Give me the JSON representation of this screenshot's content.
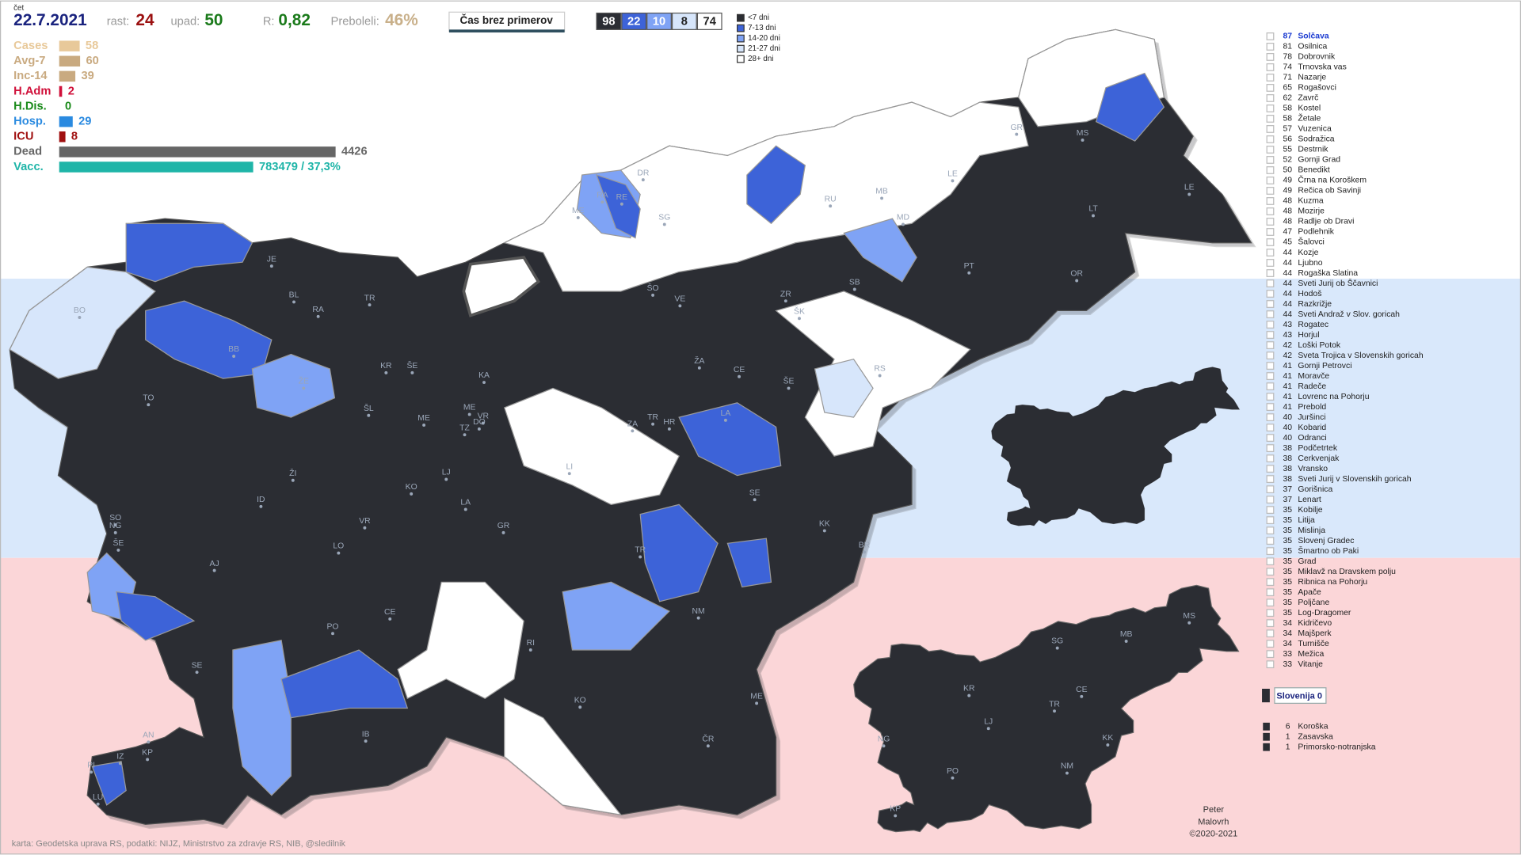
{
  "header": {
    "day": "čet",
    "date": "22.7.2021",
    "growth_label": "rast:",
    "growth": 24,
    "decline_label": "upad:",
    "decline": 50,
    "r_label": "R:",
    "r": "0,82",
    "recovered_label": "Preboleli:",
    "recovered": "46%",
    "button": "Čas brez primerov"
  },
  "counts": [
    {
      "value": 98,
      "color": "#2b2d33"
    },
    {
      "value": 22,
      "color": "#3d63d8"
    },
    {
      "value": 10,
      "color": "#7fa3f5"
    },
    {
      "value": 8,
      "color": "#d7e6fb"
    },
    {
      "value": 74,
      "color": "#ffffff"
    }
  ],
  "legend": [
    {
      "label": "<7 dni",
      "color": "#2b2d33"
    },
    {
      "label": "7-13 dni",
      "color": "#3d63d8"
    },
    {
      "label": "14-20 dni",
      "color": "#7fa3f5"
    },
    {
      "label": "21-27 dni",
      "color": "#d7e6fb"
    },
    {
      "label": "28+ dni",
      "color": "#ffffff"
    }
  ],
  "stats": [
    {
      "label": "Cases",
      "value": 58,
      "color": "#e8c99a"
    },
    {
      "label": "Avg-7",
      "value": 60,
      "color": "#c9aa80"
    },
    {
      "label": "Inc-14",
      "value": 39,
      "color": "#c9aa80"
    },
    {
      "label": "H.Adm",
      "value": 2,
      "color": "#d0103a"
    },
    {
      "label": "H.Dis.",
      "value": 0,
      "color": "#1a8a1a"
    },
    {
      "label": "Hosp.",
      "value": 29,
      "color": "#2a8ae0"
    },
    {
      "label": "ICU",
      "value": 8,
      "color": "#a01010"
    },
    {
      "label": "Dead",
      "value": 4426,
      "color": "#666666"
    },
    {
      "label": "Vacc.",
      "value": "783479 / 37,3%",
      "color": "#1fb5a8"
    }
  ],
  "ranking": [
    {
      "value": 87,
      "name": "Solčava"
    },
    {
      "value": 81,
      "name": "Osilnica"
    },
    {
      "value": 78,
      "name": "Dobrovnik"
    },
    {
      "value": 74,
      "name": "Trnovska vas"
    },
    {
      "value": 71,
      "name": "Nazarje"
    },
    {
      "value": 65,
      "name": "Rogašovci"
    },
    {
      "value": 62,
      "name": "Zavrč"
    },
    {
      "value": 58,
      "name": "Kostel"
    },
    {
      "value": 58,
      "name": "Žetale"
    },
    {
      "value": 57,
      "name": "Vuzenica"
    },
    {
      "value": 56,
      "name": "Sodražica"
    },
    {
      "value": 55,
      "name": "Destrnik"
    },
    {
      "value": 52,
      "name": "Gornji Grad"
    },
    {
      "value": 50,
      "name": "Benedikt"
    },
    {
      "value": 49,
      "name": "Črna na Koroškem"
    },
    {
      "value": 49,
      "name": "Rečica ob Savinji"
    },
    {
      "value": 48,
      "name": "Kuzma"
    },
    {
      "value": 48,
      "name": "Mozirje"
    },
    {
      "value": 48,
      "name": "Radlje ob Dravi"
    },
    {
      "value": 47,
      "name": "Podlehnik"
    },
    {
      "value": 45,
      "name": "Šalovci"
    },
    {
      "value": 44,
      "name": "Kozje"
    },
    {
      "value": 44,
      "name": "Ljubno"
    },
    {
      "value": 44,
      "name": "Rogaška Slatina"
    },
    {
      "value": 44,
      "name": "Sveti Jurij ob Ščavnici"
    },
    {
      "value": 44,
      "name": "Hodoš"
    },
    {
      "value": 44,
      "name": "Razkrižje"
    },
    {
      "value": 44,
      "name": "Sveti Andraž v Slov. goricah"
    },
    {
      "value": 43,
      "name": "Rogatec"
    },
    {
      "value": 43,
      "name": "Horjul"
    },
    {
      "value": 42,
      "name": "Loški Potok"
    },
    {
      "value": 42,
      "name": "Sveta Trojica v Slovenskih goricah"
    },
    {
      "value": 41,
      "name": "Gornji Petrovci"
    },
    {
      "value": 41,
      "name": "Moravče"
    },
    {
      "value": 41,
      "name": "Radeče"
    },
    {
      "value": 41,
      "name": "Lovrenc na Pohorju"
    },
    {
      "value": 41,
      "name": "Prebold"
    },
    {
      "value": 40,
      "name": "Juršinci"
    },
    {
      "value": 40,
      "name": "Kobarid"
    },
    {
      "value": 40,
      "name": "Odranci"
    },
    {
      "value": 38,
      "name": "Podčetrtek"
    },
    {
      "value": 38,
      "name": "Cerkvenjak"
    },
    {
      "value": 38,
      "name": "Vransko"
    },
    {
      "value": 38,
      "name": "Sveti Jurij v Slovenskih goricah"
    },
    {
      "value": 37,
      "name": "Gorišnica"
    },
    {
      "value": 37,
      "name": "Lenart"
    },
    {
      "value": 35,
      "name": "Kobilje"
    },
    {
      "value": 35,
      "name": "Litija"
    },
    {
      "value": 35,
      "name": "Mislinja"
    },
    {
      "value": 35,
      "name": "Slovenj Gradec"
    },
    {
      "value": 35,
      "name": "Šmartno ob Paki"
    },
    {
      "value": 35,
      "name": "Grad"
    },
    {
      "value": 35,
      "name": "Miklavž na Dravskem polju"
    },
    {
      "value": 35,
      "name": "Ribnica na Pohorju"
    },
    {
      "value": 35,
      "name": "Apače"
    },
    {
      "value": 35,
      "name": "Poljčane"
    },
    {
      "value": 35,
      "name": "Log-Dragomer"
    },
    {
      "value": 34,
      "name": "Kidričevo"
    },
    {
      "value": 34,
      "name": "Majšperk"
    },
    {
      "value": 34,
      "name": "Turnišče"
    },
    {
      "value": 33,
      "name": "Mežica"
    },
    {
      "value": 33,
      "name": "Vitanje"
    }
  ],
  "total": "Slovenija 0",
  "regions": [
    {
      "value": 6,
      "name": "Koroška"
    },
    {
      "value": 1,
      "name": "Zasavska"
    },
    {
      "value": 1,
      "name": "Primorsko-notranjska"
    }
  ],
  "map": {
    "labels": [
      "DR",
      "ME",
      "RA",
      "RE",
      "SG",
      "JE",
      "BL",
      "RA",
      "TR",
      "BO",
      "BB",
      "KR",
      "ŠE",
      "KA",
      "ŠO",
      "VE",
      "ŽA",
      "ŠK",
      "ZR",
      "SB",
      "RU",
      "MB",
      "MD",
      "LE",
      "GR",
      "MS",
      "LT",
      "LE",
      "PT",
      "OR",
      "RS",
      "CE",
      "ŠE",
      "LA",
      "TO",
      "ŽE",
      "ŠL",
      "ME",
      "ME",
      "VR",
      "DO",
      "TZ",
      "ZA",
      "TR",
      "HR",
      "LJ",
      "LI",
      "ŽI",
      "ID",
      "LA",
      "KO",
      "SE",
      "VR",
      "GR",
      "KK",
      "BR",
      "SO",
      "NG",
      "ŠE",
      "LO",
      "AJ",
      "TR",
      "CE",
      "NM",
      "PO",
      "RI",
      "SE",
      "KO",
      "ME",
      "IB",
      "AN",
      "IZ",
      "KP",
      "PI",
      "LU",
      "ČR"
    ],
    "region_labels": [
      "MS",
      "SG",
      "MB",
      "KR",
      "CE",
      "TR",
      "LJ",
      "NG",
      "KK",
      "PO",
      "NM",
      "KP"
    ]
  },
  "footer": {
    "source": "karta: Geodetska uprava RS,  podatki: NIJZ, Ministrstvo za zdravje RS, NIB, @sledilnik",
    "author": [
      "Peter",
      "Malovrh",
      "©2020-2021"
    ]
  }
}
